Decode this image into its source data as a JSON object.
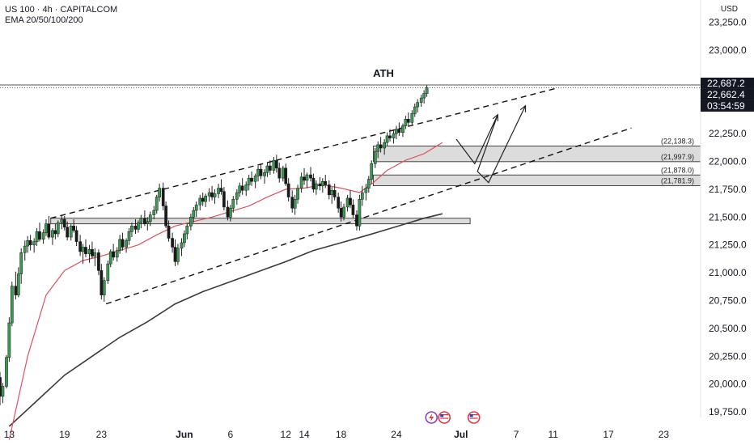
{
  "header": {
    "symbol": "US 100 · 4h · CAPITALCOM",
    "indicator": "EMA 20/50/100/200",
    "currency": "USD"
  },
  "chart_data": {
    "type": "candlestick",
    "ylim": [
      19700,
      23450
    ],
    "y_ticks": [
      19750,
      20000,
      20250,
      20500,
      20750,
      21000,
      21250,
      21500,
      21750,
      22000,
      22250,
      23000,
      23250
    ],
    "y_tick_labels": [
      "19,750.0",
      "20,000.0",
      "20,250.0",
      "20,500.0",
      "20,750.0",
      "21,000.0",
      "21,250.0",
      "21,500.0",
      "21,750.0",
      "22,000.0",
      "22,250.0",
      "23,000.0",
      "23,250.0"
    ],
    "x_ticks": [
      {
        "day": 13,
        "label": "13"
      },
      {
        "day": 19,
        "label": "19"
      },
      {
        "day": 23,
        "label": "23"
      },
      {
        "day": 32,
        "label": "Jun",
        "bold": true
      },
      {
        "day": 37,
        "label": "6"
      },
      {
        "day": 43,
        "label": "12"
      },
      {
        "day": 45,
        "label": "14"
      },
      {
        "day": 49,
        "label": "18"
      },
      {
        "day": 55,
        "label": "24"
      },
      {
        "day": 62,
        "label": "Jul",
        "bold": true
      },
      {
        "day": 68,
        "label": "7"
      },
      {
        "day": 72,
        "label": "11"
      },
      {
        "day": 78,
        "label": "17"
      },
      {
        "day": 84,
        "label": "23"
      }
    ],
    "x_range_days": [
      12.0,
      88.0
    ],
    "price_tags": [
      {
        "label": "22,687.2",
        "value": 22687.2,
        "style": "dark"
      },
      {
        "label": "22,662.4",
        "value": 22662.4,
        "style": "dark"
      },
      {
        "label": "03:54:59",
        "value": 22540,
        "style": "dark"
      }
    ],
    "ath": {
      "label": "ATH",
      "value": 22687.2
    },
    "zones": [
      {
        "from_day": 52.5,
        "to_day": 88,
        "low": 21997.9,
        "high": 22138.3,
        "top_label": "(22,138.3)",
        "bottom_label": "(21,997.9)"
      },
      {
        "from_day": 52.5,
        "to_day": 88,
        "low": 21781.9,
        "high": 21878.0,
        "top_label": "(21,878.0)",
        "bottom_label": "(21,781.9)"
      },
      {
        "from_day": 17.5,
        "to_day": 63,
        "low": 21440,
        "high": 21490
      }
    ],
    "trendlines": [
      {
        "style": "dashed",
        "points": [
          [
            17.5,
            21490
          ],
          [
            72.5,
            22660
          ]
        ]
      },
      {
        "style": "dashed",
        "points": [
          [
            23.5,
            20720
          ],
          [
            80.5,
            22300
          ]
        ]
      }
    ],
    "projection_path": [
      [
        61.5,
        22200
      ],
      [
        63.5,
        21980
      ],
      [
        66.0,
        22420
      ],
      [
        63.8,
        21910
      ],
      [
        65.0,
        21810
      ],
      [
        69.0,
        22500
      ]
    ],
    "ema_20_50": [
      [
        13,
        19500
      ],
      [
        15,
        20250
      ],
      [
        17,
        20800
      ],
      [
        19,
        21020
      ],
      [
        21,
        21110
      ],
      [
        23,
        21150
      ],
      [
        25,
        21200
      ],
      [
        27,
        21250
      ],
      [
        29,
        21340
      ],
      [
        31,
        21420
      ],
      [
        33,
        21460
      ],
      [
        35,
        21500
      ],
      [
        37,
        21550
      ],
      [
        39,
        21600
      ],
      [
        41,
        21680
      ],
      [
        43,
        21750
      ],
      [
        45,
        21760
      ],
      [
        47,
        21790
      ],
      [
        49,
        21760
      ],
      [
        51,
        21720
      ],
      [
        52.5,
        21810
      ],
      [
        54,
        21920
      ],
      [
        56,
        22010
      ],
      [
        58,
        22070
      ],
      [
        60,
        22170
      ]
    ],
    "ema_200": [
      [
        13,
        19620
      ],
      [
        16,
        19850
      ],
      [
        19,
        20080
      ],
      [
        22,
        20250
      ],
      [
        25,
        20420
      ],
      [
        28,
        20560
      ],
      [
        31,
        20720
      ],
      [
        34,
        20830
      ],
      [
        37,
        20920
      ],
      [
        40,
        21010
      ],
      [
        43,
        21100
      ],
      [
        46,
        21200
      ],
      [
        49,
        21270
      ],
      [
        52,
        21340
      ],
      [
        54,
        21390
      ],
      [
        56,
        21440
      ],
      [
        58,
        21490
      ],
      [
        60,
        21530
      ]
    ],
    "candles_4h": [
      [
        12.0,
        20060,
        20110,
        19810,
        19890
      ],
      [
        12.3,
        19890,
        20010,
        19830,
        19980
      ],
      [
        12.7,
        19980,
        20260,
        19960,
        20240
      ],
      [
        13.0,
        20240,
        20600,
        20200,
        20550
      ],
      [
        13.3,
        20550,
        20920,
        20520,
        20880
      ],
      [
        13.7,
        20880,
        21010,
        20760,
        20800
      ],
      [
        14.0,
        20800,
        21050,
        20780,
        20990
      ],
      [
        14.3,
        20990,
        21220,
        20900,
        21180
      ],
      [
        14.7,
        21180,
        21290,
        21110,
        21240
      ],
      [
        15.0,
        21240,
        21330,
        21180,
        21290
      ],
      [
        15.3,
        21290,
        21340,
        21200,
        21250
      ],
      [
        15.7,
        21250,
        21310,
        21180,
        21280
      ],
      [
        16.0,
        21280,
        21400,
        21240,
        21370
      ],
      [
        16.3,
        21370,
        21450,
        21280,
        21300
      ],
      [
        16.7,
        21300,
        21390,
        21260,
        21360
      ],
      [
        17.0,
        21360,
        21480,
        21330,
        21440
      ],
      [
        17.3,
        21440,
        21510,
        21300,
        21320
      ],
      [
        17.7,
        21320,
        21400,
        21250,
        21380
      ],
      [
        18.0,
        21380,
        21440,
        21300,
        21350
      ],
      [
        18.3,
        21350,
        21470,
        21320,
        21450
      ],
      [
        18.7,
        21450,
        21520,
        21390,
        21480
      ],
      [
        19.0,
        21480,
        21510,
        21380,
        21410
      ],
      [
        19.3,
        21410,
        21460,
        21290,
        21320
      ],
      [
        19.7,
        21320,
        21440,
        21290,
        21420
      ],
      [
        20.0,
        21420,
        21480,
        21360,
        21380
      ],
      [
        20.3,
        21380,
        21420,
        21240,
        21280
      ],
      [
        20.7,
        21280,
        21340,
        21150,
        21190
      ],
      [
        21.0,
        21190,
        21260,
        21080,
        21230
      ],
      [
        21.3,
        21230,
        21300,
        21140,
        21170
      ],
      [
        21.7,
        21170,
        21250,
        21090,
        21210
      ],
      [
        22.0,
        21210,
        21280,
        21130,
        21150
      ],
      [
        22.3,
        21150,
        21220,
        21060,
        21180
      ],
      [
        22.7,
        21180,
        21210,
        20980,
        21020
      ],
      [
        23.0,
        21020,
        21080,
        20760,
        20800
      ],
      [
        23.3,
        20800,
        20960,
        20740,
        20930
      ],
      [
        23.7,
        20930,
        21110,
        20900,
        21080
      ],
      [
        24.0,
        21080,
        21210,
        21050,
        21190
      ],
      [
        24.3,
        21190,
        21260,
        21110,
        21140
      ],
      [
        24.7,
        21140,
        21230,
        21100,
        21200
      ],
      [
        25.0,
        21200,
        21340,
        21170,
        21300
      ],
      [
        25.3,
        21300,
        21360,
        21200,
        21230
      ],
      [
        25.7,
        21230,
        21310,
        21180,
        21290
      ],
      [
        26.0,
        21290,
        21400,
        21250,
        21370
      ],
      [
        26.3,
        21370,
        21450,
        21320,
        21420
      ],
      [
        26.7,
        21420,
        21480,
        21350,
        21390
      ],
      [
        27.0,
        21390,
        21470,
        21360,
        21450
      ],
      [
        27.3,
        21450,
        21520,
        21400,
        21490
      ],
      [
        27.7,
        21490,
        21560,
        21420,
        21440
      ],
      [
        28.0,
        21440,
        21500,
        21380,
        21460
      ],
      [
        28.3,
        21460,
        21550,
        21420,
        21520
      ],
      [
        28.7,
        21520,
        21600,
        21480,
        21560
      ],
      [
        29.0,
        21560,
        21700,
        21530,
        21680
      ],
      [
        29.3,
        21680,
        21800,
        21640,
        21760
      ],
      [
        29.7,
        21760,
        21810,
        21560,
        21600
      ],
      [
        30.0,
        21600,
        21640,
        21400,
        21420
      ],
      [
        30.3,
        21420,
        21470,
        21280,
        21310
      ],
      [
        30.7,
        21310,
        21360,
        21180,
        21230
      ],
      [
        31.0,
        21230,
        21300,
        21060,
        21100
      ],
      [
        31.3,
        21100,
        21260,
        21070,
        21220
      ],
      [
        31.7,
        21220,
        21310,
        21150,
        21270
      ],
      [
        32.0,
        21270,
        21380,
        21230,
        21350
      ],
      [
        32.3,
        21350,
        21440,
        21300,
        21420
      ],
      [
        32.7,
        21420,
        21530,
        21380,
        21500
      ],
      [
        33.0,
        21500,
        21590,
        21450,
        21560
      ],
      [
        33.3,
        21560,
        21640,
        21500,
        21610
      ],
      [
        33.7,
        21610,
        21700,
        21560,
        21670
      ],
      [
        34.0,
        21670,
        21720,
        21600,
        21640
      ],
      [
        34.3,
        21640,
        21710,
        21590,
        21690
      ],
      [
        34.7,
        21690,
        21760,
        21640,
        21720
      ],
      [
        35.0,
        21720,
        21780,
        21650,
        21680
      ],
      [
        35.3,
        21680,
        21750,
        21620,
        21710
      ],
      [
        35.7,
        21710,
        21800,
        21670,
        21760
      ],
      [
        36.0,
        21760,
        21840,
        21700,
        21730
      ],
      [
        36.3,
        21730,
        21770,
        21560,
        21590
      ],
      [
        36.7,
        21590,
        21650,
        21470,
        21500
      ],
      [
        37.0,
        21500,
        21610,
        21460,
        21580
      ],
      [
        37.3,
        21580,
        21690,
        21540,
        21660
      ],
      [
        37.7,
        21660,
        21750,
        21610,
        21720
      ],
      [
        38.0,
        21720,
        21810,
        21680,
        21780
      ],
      [
        38.3,
        21780,
        21850,
        21700,
        21740
      ],
      [
        38.7,
        21740,
        21820,
        21690,
        21790
      ],
      [
        39.0,
        21790,
        21880,
        21740,
        21850
      ],
      [
        39.3,
        21850,
        21910,
        21780,
        21820
      ],
      [
        39.7,
        21820,
        21890,
        21760,
        21870
      ],
      [
        40.0,
        21870,
        21960,
        21820,
        21930
      ],
      [
        40.3,
        21930,
        21980,
        21840,
        21870
      ],
      [
        40.7,
        21870,
        21930,
        21800,
        21900
      ],
      [
        41.0,
        21900,
        21990,
        21860,
        21960
      ],
      [
        41.3,
        21960,
        22010,
        21880,
        21920
      ],
      [
        41.7,
        21920,
        22040,
        21890,
        22010
      ],
      [
        42.0,
        22010,
        22060,
        21900,
        21940
      ],
      [
        42.3,
        21940,
        21990,
        21810,
        21850
      ],
      [
        42.7,
        21850,
        21960,
        21820,
        21940
      ],
      [
        43.0,
        21940,
        21980,
        21780,
        21800
      ],
      [
        43.3,
        21800,
        21850,
        21640,
        21680
      ],
      [
        43.7,
        21680,
        21740,
        21540,
        21580
      ],
      [
        44.0,
        21580,
        21700,
        21520,
        21660
      ],
      [
        44.3,
        21660,
        21790,
        21620,
        21760
      ],
      [
        44.7,
        21760,
        21900,
        21720,
        21860
      ],
      [
        45.0,
        21860,
        21940,
        21790,
        21830
      ],
      [
        45.3,
        21830,
        21900,
        21760,
        21880
      ],
      [
        45.7,
        21880,
        21950,
        21820,
        21850
      ],
      [
        46.0,
        21850,
        21890,
        21720,
        21750
      ],
      [
        46.3,
        21750,
        21830,
        21700,
        21800
      ],
      [
        46.7,
        21800,
        21860,
        21740,
        21780
      ],
      [
        47.0,
        21780,
        21850,
        21720,
        21820
      ],
      [
        47.3,
        21820,
        21880,
        21760,
        21790
      ],
      [
        47.7,
        21790,
        21830,
        21660,
        21700
      ],
      [
        48.0,
        21700,
        21770,
        21620,
        21740
      ],
      [
        48.3,
        21740,
        21800,
        21650,
        21680
      ],
      [
        48.7,
        21680,
        21720,
        21540,
        21580
      ],
      [
        49.0,
        21580,
        21640,
        21460,
        21500
      ],
      [
        49.3,
        21500,
        21620,
        21470,
        21590
      ],
      [
        49.7,
        21590,
        21700,
        21550,
        21670
      ],
      [
        50.0,
        21670,
        21740,
        21580,
        21610
      ],
      [
        50.3,
        21610,
        21660,
        21490,
        21520
      ],
      [
        50.7,
        21520,
        21560,
        21380,
        21420
      ],
      [
        51.0,
        21420,
        21700,
        21380,
        21660
      ],
      [
        51.3,
        21660,
        21780,
        21600,
        21720
      ],
      [
        51.7,
        21720,
        21800,
        21650,
        21760
      ],
      [
        52.0,
        21760,
        21870,
        21720,
        21840
      ],
      [
        52.3,
        21840,
        22010,
        21800,
        21980
      ],
      [
        52.7,
        21980,
        22120,
        21940,
        22090
      ],
      [
        53.0,
        22090,
        22180,
        22030,
        22150
      ],
      [
        53.3,
        22150,
        22220,
        22080,
        22120
      ],
      [
        53.7,
        22120,
        22200,
        22060,
        22170
      ],
      [
        54.0,
        22170,
        22260,
        22140,
        22230
      ],
      [
        54.3,
        22230,
        22290,
        22180,
        22210
      ],
      [
        54.7,
        22210,
        22280,
        22160,
        22250
      ],
      [
        55.0,
        22250,
        22320,
        22200,
        22290
      ],
      [
        55.3,
        22290,
        22350,
        22230,
        22260
      ],
      [
        55.7,
        22260,
        22340,
        22220,
        22320
      ],
      [
        56.0,
        22320,
        22410,
        22290,
        22380
      ],
      [
        56.3,
        22380,
        22440,
        22320,
        22350
      ],
      [
        56.7,
        22350,
        22460,
        22330,
        22430
      ],
      [
        57.0,
        22430,
        22520,
        22400,
        22490
      ],
      [
        57.3,
        22490,
        22560,
        22440,
        22530
      ],
      [
        57.7,
        22530,
        22600,
        22490,
        22570
      ],
      [
        58.0,
        22570,
        22640,
        22520,
        22610
      ],
      [
        58.3,
        22610,
        22687,
        22580,
        22662
      ]
    ],
    "annotations": [
      "ATH"
    ]
  }
}
